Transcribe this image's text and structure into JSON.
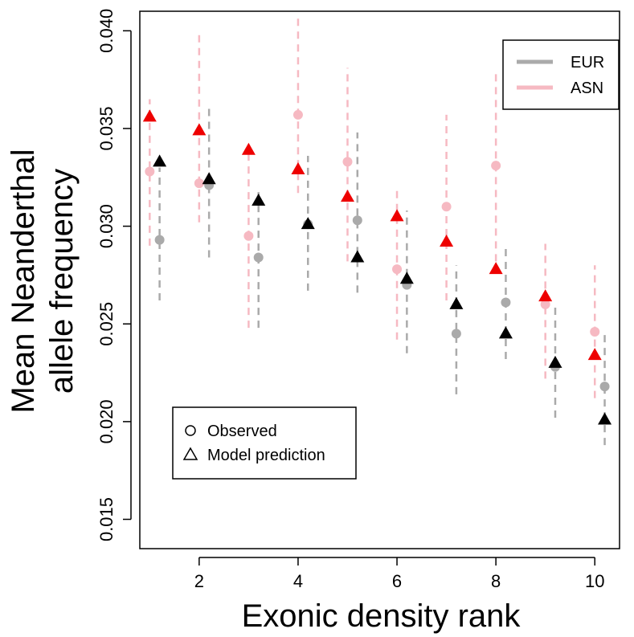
{
  "chart_data": {
    "type": "scatter",
    "title": "",
    "xlabel": "Exonic density rank",
    "ylabel_lines": [
      "Mean Neanderthal",
      "allele frequency"
    ],
    "xlim": [
      0.8,
      10.5
    ],
    "ylim": [
      0.0135,
      0.041
    ],
    "x_ticks": [
      2,
      4,
      6,
      8,
      10
    ],
    "x_tick_labels": [
      "2",
      "4",
      "6",
      "8",
      "10"
    ],
    "y_ticks": [
      0.015,
      0.02,
      0.025,
      0.03,
      0.035,
      0.04
    ],
    "y_tick_labels": [
      "0.015",
      "0.020",
      "0.025",
      "0.030",
      "0.035",
      "0.040"
    ],
    "grid": false,
    "legend_population": {
      "placement": "top-right",
      "entries": [
        {
          "label": "EUR",
          "color": "#aaaaaa"
        },
        {
          "label": "ASN",
          "color": "#f6b9c2"
        }
      ]
    },
    "legend_marker": {
      "placement": "bottom-left",
      "entries": [
        {
          "label": "Observed",
          "marker": "circle"
        },
        {
          "label": "Model prediction",
          "marker": "triangle"
        }
      ]
    },
    "colors": {
      "eur_observed": "#aaaaaa",
      "asn_observed": "#f6b9c2",
      "eur_model": "#000000",
      "asn_model": "#ee0000"
    },
    "series": [
      {
        "name": "ASN",
        "type": "observed",
        "x": [
          1,
          2,
          3,
          4,
          5,
          6,
          7,
          8,
          9,
          10
        ],
        "y": [
          0.0328,
          0.0322,
          0.0295,
          0.0357,
          0.0333,
          0.0278,
          0.031,
          0.0331,
          0.026,
          0.0246
        ],
        "err_low": [
          0.029,
          0.0302,
          0.0248,
          0.0317,
          0.0282,
          0.0242,
          0.0262,
          0.0282,
          0.0222,
          0.0212
        ],
        "err_high": [
          0.0365,
          0.0398,
          0.0337,
          0.0407,
          0.0381,
          0.0318,
          0.0357,
          0.038,
          0.0291,
          0.028
        ]
      },
      {
        "name": "EUR",
        "type": "observed",
        "x": [
          1.2,
          2.2,
          3.2,
          4.2,
          5.2,
          6.2,
          7.2,
          8.2,
          9.2,
          10.2
        ],
        "y": [
          0.0293,
          0.0321,
          0.0284,
          0.0301,
          0.0303,
          0.027,
          0.0245,
          0.0261,
          0.0228,
          0.0218
        ],
        "err_low": [
          0.0262,
          0.0284,
          0.0248,
          0.0267,
          0.0266,
          0.0235,
          0.0214,
          0.0232,
          0.0202,
          0.0188
        ],
        "err_high": [
          0.033,
          0.0362,
          0.032,
          0.0336,
          0.0348,
          0.0308,
          0.028,
          0.0291,
          0.0259,
          0.0247
        ]
      },
      {
        "name": "ASN",
        "type": "model",
        "x": [
          1,
          2,
          3,
          4,
          5,
          6,
          7,
          8,
          9,
          10
        ],
        "y": [
          0.0356,
          0.0349,
          0.0339,
          0.0329,
          0.0315,
          0.0305,
          0.0292,
          0.0278,
          0.0264,
          0.0234
        ]
      },
      {
        "name": "EUR",
        "type": "model",
        "x": [
          1.2,
          2.2,
          3.2,
          4.2,
          5.2,
          6.2,
          7.2,
          8.2,
          9.2,
          10.2
        ],
        "y": [
          0.0333,
          0.0324,
          0.0313,
          0.0301,
          0.0284,
          0.0273,
          0.026,
          0.0245,
          0.023,
          0.0201
        ]
      }
    ]
  }
}
